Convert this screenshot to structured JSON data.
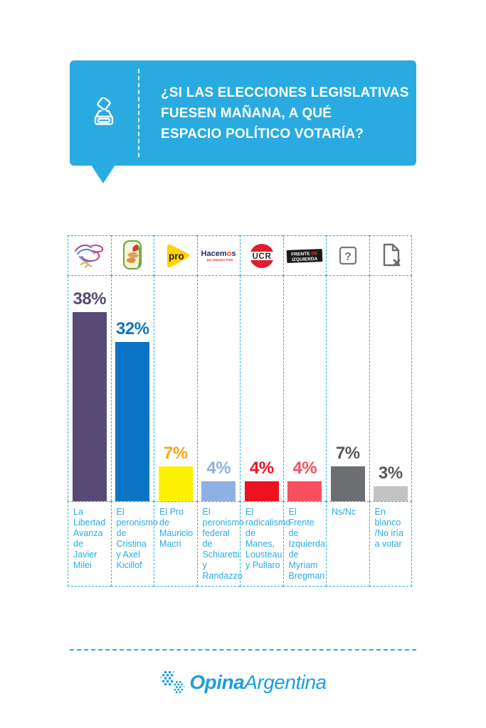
{
  "header": {
    "title_lines": [
      "¿SI LAS ELECCIONES LEGISLATIVAS",
      "FUESEN MAÑANA, A QUÉ",
      "ESPACIO POLÍTICO VOTARÍA?"
    ],
    "icon": "ballot-box-icon",
    "background": "#29abe2"
  },
  "chart_data": {
    "type": "bar",
    "title": "¿Si las elecciones legislativas fuesen mañana, a qué espacio político votaría?",
    "unit": "%",
    "categories": [
      "La Libertad Avanza de Javier Milei",
      "El peronismo de Cristina y Axel Kicillof",
      "El Pro de Mauricio Macri",
      "El peronismo federal de Schiaretti y Randazzo",
      "El radicalismo de Manes, Lousteau y Pullaro",
      "El Frente de Izquierda de Myriam Bregman",
      "Ns/Nc",
      "En blanco /No iría a votar"
    ],
    "values": [
      38,
      32,
      7,
      4,
      4,
      4,
      7,
      3
    ],
    "value_labels": [
      "38%",
      "32%",
      "7%",
      "4%",
      "4%",
      "4%",
      "7%",
      "3%"
    ],
    "bar_colors": [
      "#584a77",
      "#0b74c4",
      "#fef200",
      "#8fb0e2",
      "#ee111f",
      "#f8505e",
      "#6d6e71",
      "#c1c2c4"
    ],
    "value_label_colors": [
      "#584a77",
      "#0b74c4",
      "#f9a51b",
      "#8fb0e2",
      "#ee111f",
      "#f8505e",
      "#59595b",
      "#59595b"
    ],
    "logos": [
      "lla-eagle",
      "pj-shield",
      "pro",
      "hacemos",
      "ucr",
      "frente-izquierda",
      "question-mark",
      "blank-ballot"
    ],
    "ids": [
      "la-libertad-avanza",
      "peronismo-kicillof",
      "pro-macri",
      "peronismo-federal",
      "radicalismo",
      "frente-izquierda",
      "ns-nc",
      "en-blanco"
    ],
    "logo_text": {
      "pro": "pro",
      "hacemos": "Hacemos",
      "hacemos_sub": "por Nuestro País",
      "ucr": "UCR",
      "fit_line1": "FRENTE DE",
      "fit_line2": "IZQUIERDA",
      "question": "?"
    },
    "ylim": [
      0,
      45
    ],
    "grid": "dashed light-blue column separators and baselines",
    "legend": "none"
  },
  "style": {
    "accent": "#29abe2",
    "category_label_color": "#2aabe3",
    "background": "#ffffff",
    "brand_blue": "#1b9fdf"
  },
  "footer": {
    "brand_bold": "Opina",
    "brand_regular": "Argentina"
  }
}
